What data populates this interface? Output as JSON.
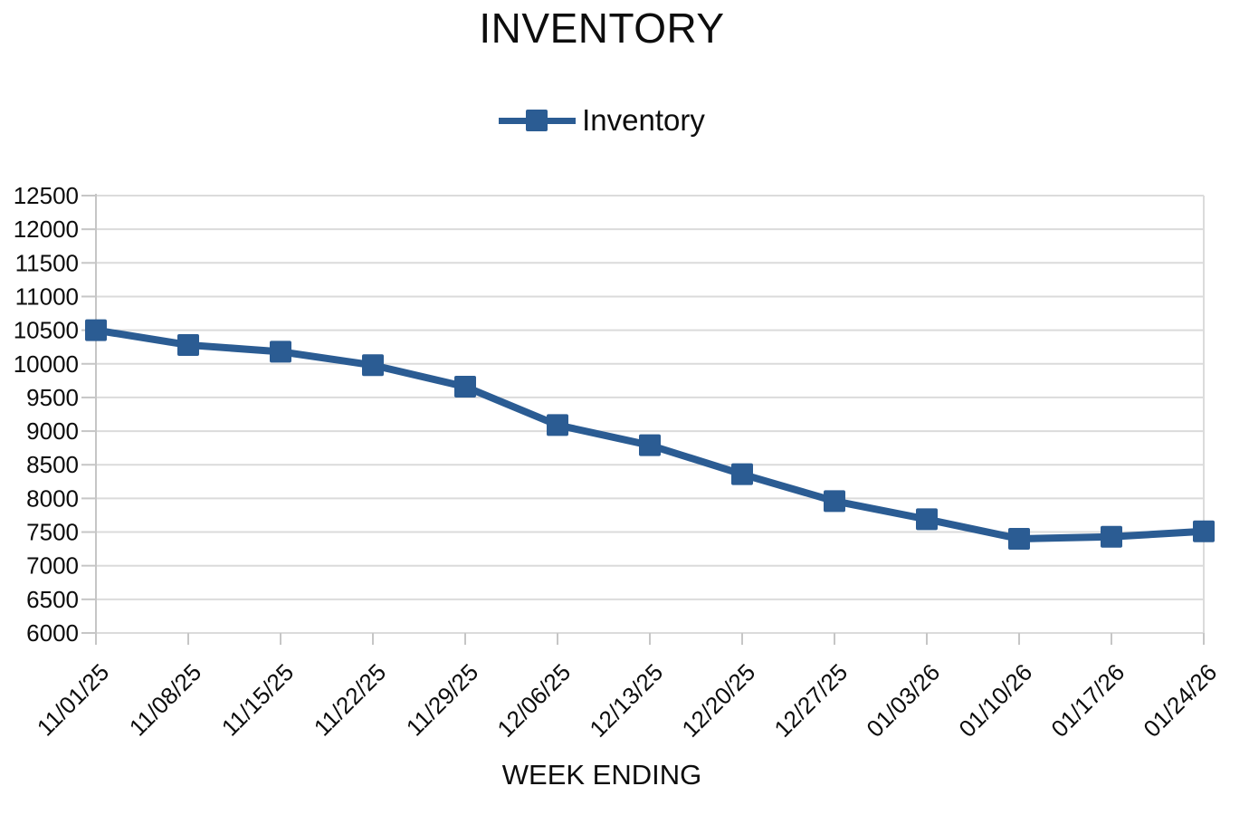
{
  "page": {
    "background": "#ffffff"
  },
  "chart_data": {
    "type": "line",
    "title": "INVENTORY",
    "xlabel": "WEEK ENDING",
    "ylabel": "",
    "categories": [
      "11/01/25",
      "11/08/25",
      "11/15/25",
      "11/22/25",
      "11/29/25",
      "12/06/25",
      "12/13/25",
      "12/20/25",
      "12/27/25",
      "01/03/26",
      "01/10/26",
      "01/17/26",
      "01/24/26"
    ],
    "series": [
      {
        "name": "Inventory",
        "values": [
          10500,
          10280,
          10180,
          9980,
          9660,
          9090,
          8790,
          8360,
          7960,
          7690,
          7400,
          7430,
          7510
        ],
        "color": "#2B5C93",
        "marker": "square"
      }
    ],
    "ylim": [
      6000,
      12500
    ],
    "ytick_step": 500,
    "grid": "horizontal",
    "legend_position": "top",
    "colors": {
      "gridline": "#DBDBDB",
      "axis": "#C6C6C6",
      "tick": "#C6C6C6",
      "text": "#0d0d0d"
    }
  }
}
